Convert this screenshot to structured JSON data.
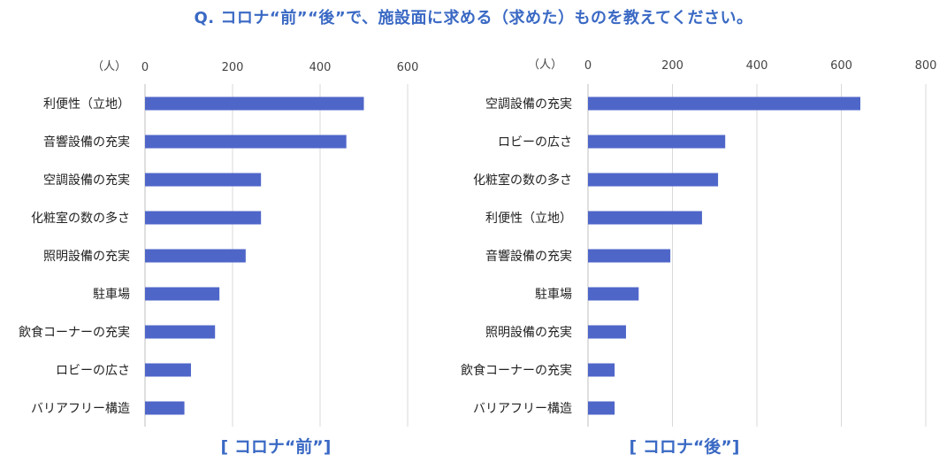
{
  "title": "Q. コロナ“前”“後”で、施設面に求める（求めた）ものを教えてください。",
  "colors": {
    "bar": "#4f66c9",
    "title": "#3a69c4",
    "grid": "#d9d9d9",
    "text": "#222222",
    "axis": "#444444"
  },
  "chart_data": [
    {
      "type": "bar",
      "orientation": "horizontal",
      "subtitle": "[ コロナ“前”]",
      "unit_label": "（人）",
      "categories": [
        "利便性（立地）",
        "音響設備の充実",
        "空調設備の充実",
        "化粧室の数の多さ",
        "照明設備の充実",
        "駐車場",
        "飲食コーナーの充実",
        "ロビーの広さ",
        "バリアフリー構造"
      ],
      "values": [
        500,
        460,
        265,
        265,
        230,
        170,
        160,
        105,
        90
      ],
      "xlim": [
        0,
        600
      ],
      "ticks": [
        "0",
        "200",
        "400",
        "600"
      ],
      "grid": true,
      "tick_position": "top"
    },
    {
      "type": "bar",
      "orientation": "horizontal",
      "subtitle": "[ コロナ“後”]",
      "unit_label": "（人）",
      "categories": [
        "空調設備の充実",
        "ロビーの広さ",
        "化粧室の数の多さ",
        "利便性（立地）",
        "音響設備の充実",
        "駐車場",
        "照明設備の充実",
        "飲食コーナーの充実",
        "バリアフリー構造"
      ],
      "values": [
        645,
        325,
        308,
        270,
        195,
        120,
        90,
        63,
        63
      ],
      "xlim": [
        0,
        800
      ],
      "ticks": [
        "0",
        "200",
        "400",
        "600",
        "800"
      ],
      "grid": true,
      "tick_position": "top"
    }
  ]
}
